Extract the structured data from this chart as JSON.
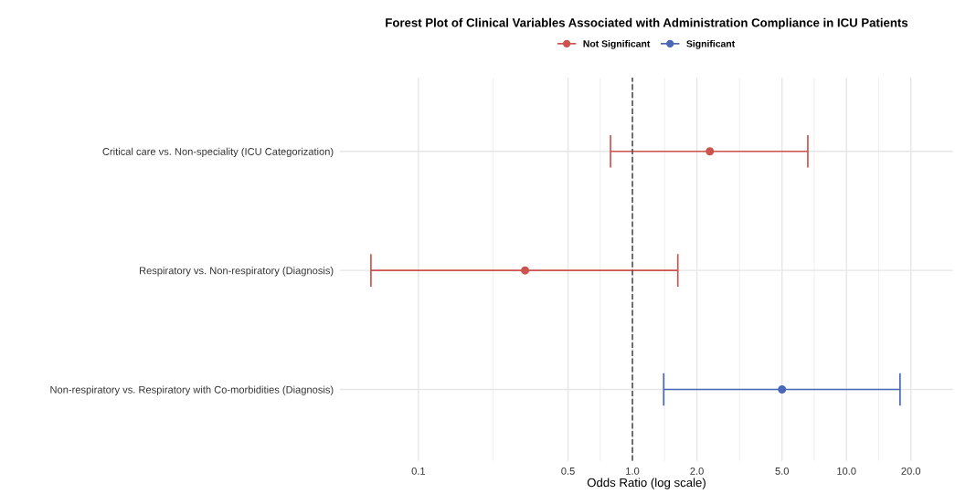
{
  "chart_data": {
    "type": "scatter",
    "orientation": "horizontal",
    "title": "Forest Plot of Clinical Variables Associated with Administration Compliance in ICU Patients",
    "xlabel": "Odds Ratio (log scale)",
    "categories": [
      "Critical care vs. Non-speciality (ICU Categorization)",
      "Respiratory vs. Non-respiratory (Diagnosis)",
      "Non-respiratory vs. Respiratory with Co-morbidities (Diagnosis)"
    ],
    "series": [
      {
        "name": "Not Significant",
        "color": "#cd534c",
        "values": [
          2.3,
          0.315,
          null
        ],
        "errors": [
          [
            0.79,
            6.6
          ],
          [
            0.06,
            1.63
          ],
          null
        ]
      },
      {
        "name": "Significant",
        "color": "#4a67b8",
        "values": [
          null,
          null,
          5.0
        ],
        "errors": [
          null,
          null,
          [
            1.4,
            17.8
          ]
        ]
      }
    ],
    "log": "x",
    "xlim": [
      0.043,
      31.5
    ],
    "xticks": [
      {
        "value": 0.1,
        "label": "0.1"
      },
      {
        "value": 0.5,
        "label": "0.5"
      },
      {
        "value": 1,
        "label": "1.0"
      },
      {
        "value": 2,
        "label": "2.0"
      },
      {
        "value": 5,
        "label": "5.0"
      },
      {
        "value": 10,
        "label": "10.0"
      },
      {
        "value": 20,
        "label": "20.0"
      }
    ],
    "ref_lines": [
      {
        "axis": "x",
        "value": 1,
        "color": "#555555",
        "line_style": "dashed"
      }
    ],
    "grid": true,
    "legend": "top",
    "marker": "circle"
  }
}
